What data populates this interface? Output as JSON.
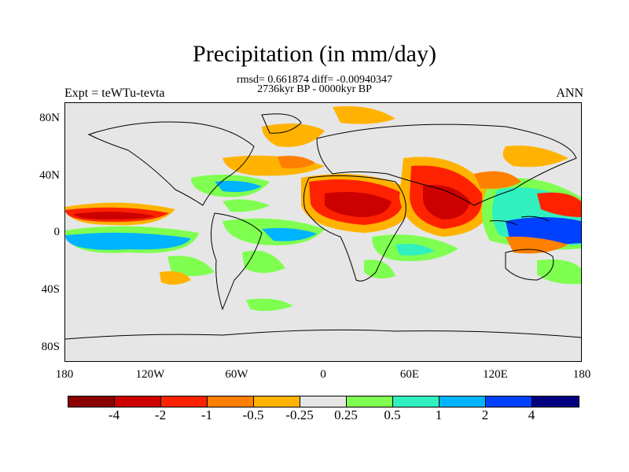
{
  "title": "Precipitation (in mm/day)",
  "stats_line": "rmsd= 0.661874 diff= -0.00940347",
  "period_line": "2736kyr BP - 0000kyr BP",
  "left_label": "Expt = teWTu-tevta",
  "right_label": "ANN",
  "lat_labels": [
    "80N",
    "40N",
    "0",
    "40S",
    "80S"
  ],
  "lon_labels": [
    "180",
    "120W",
    "60W",
    "0",
    "60E",
    "120E",
    "180"
  ],
  "colorbar": {
    "colors": [
      "#8b0000",
      "#cc0000",
      "#ff2200",
      "#ff7f00",
      "#ffb300",
      "#e6e6e6",
      "#7fff50",
      "#30f0c0",
      "#00b4ff",
      "#0040ff",
      "#000080"
    ],
    "labels": [
      "-4",
      "-2",
      "-1",
      "-0.5",
      "-0.25",
      "0.25",
      "0.5",
      "1",
      "2",
      "4"
    ]
  }
}
